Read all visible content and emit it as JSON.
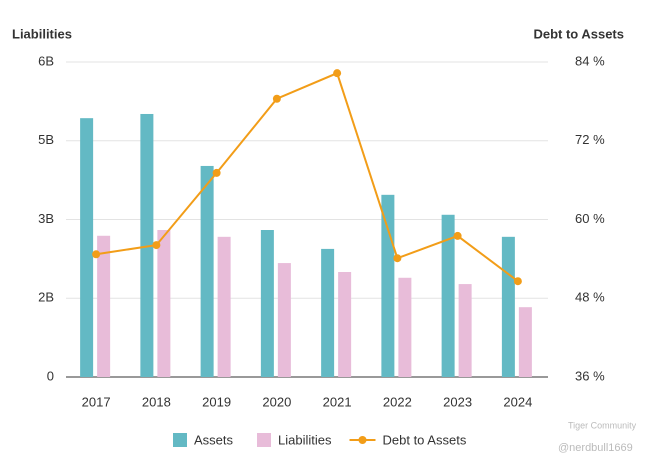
{
  "chart_data": {
    "type": "bar-line",
    "y_axis_title": "Liabilities",
    "y2_axis_title": "Debt to Assets",
    "categories": [
      "2017",
      "2018",
      "2019",
      "2020",
      "2021",
      "2022",
      "2023",
      "2024"
    ],
    "series": [
      {
        "name": "Assets",
        "type": "bar",
        "color": "#63b9c4",
        "values": [
          4.93,
          5.01,
          4.02,
          2.8,
          2.44,
          3.47,
          3.09,
          2.67
        ]
      },
      {
        "name": "Liabilities",
        "type": "bar",
        "color": "#e8bcd9",
        "values": [
          2.69,
          2.8,
          2.67,
          2.17,
          2.0,
          1.89,
          1.77,
          1.33
        ]
      },
      {
        "name": "Debt to Assets",
        "type": "line",
        "axis": "y2",
        "color": "#f29d18",
        "values": [
          54.7,
          56.1,
          67.1,
          78.4,
          82.3,
          54.1,
          57.5,
          50.6
        ]
      }
    ],
    "ylim": [
      0,
      6
    ],
    "yticks": [
      0,
      {
        "value": 1.5,
        "label": "2B"
      },
      {
        "value": 3,
        "label": "3B"
      },
      {
        "value": 4.5,
        "label": "5B"
      },
      {
        "value": 6,
        "label": "6B"
      }
    ],
    "y2lim": [
      36,
      84
    ],
    "y2ticks": [
      {
        "value": 36,
        "label": "36 %"
      },
      {
        "value": 48,
        "label": "48 %"
      },
      {
        "value": 60,
        "label": "60 %"
      },
      {
        "value": 72,
        "label": "72 %"
      },
      {
        "value": 84,
        "label": "84 %"
      }
    ],
    "grid": true,
    "legend": "bottom",
    "watermark": [
      "Tiger Community",
      "@nerdbull1669"
    ]
  }
}
